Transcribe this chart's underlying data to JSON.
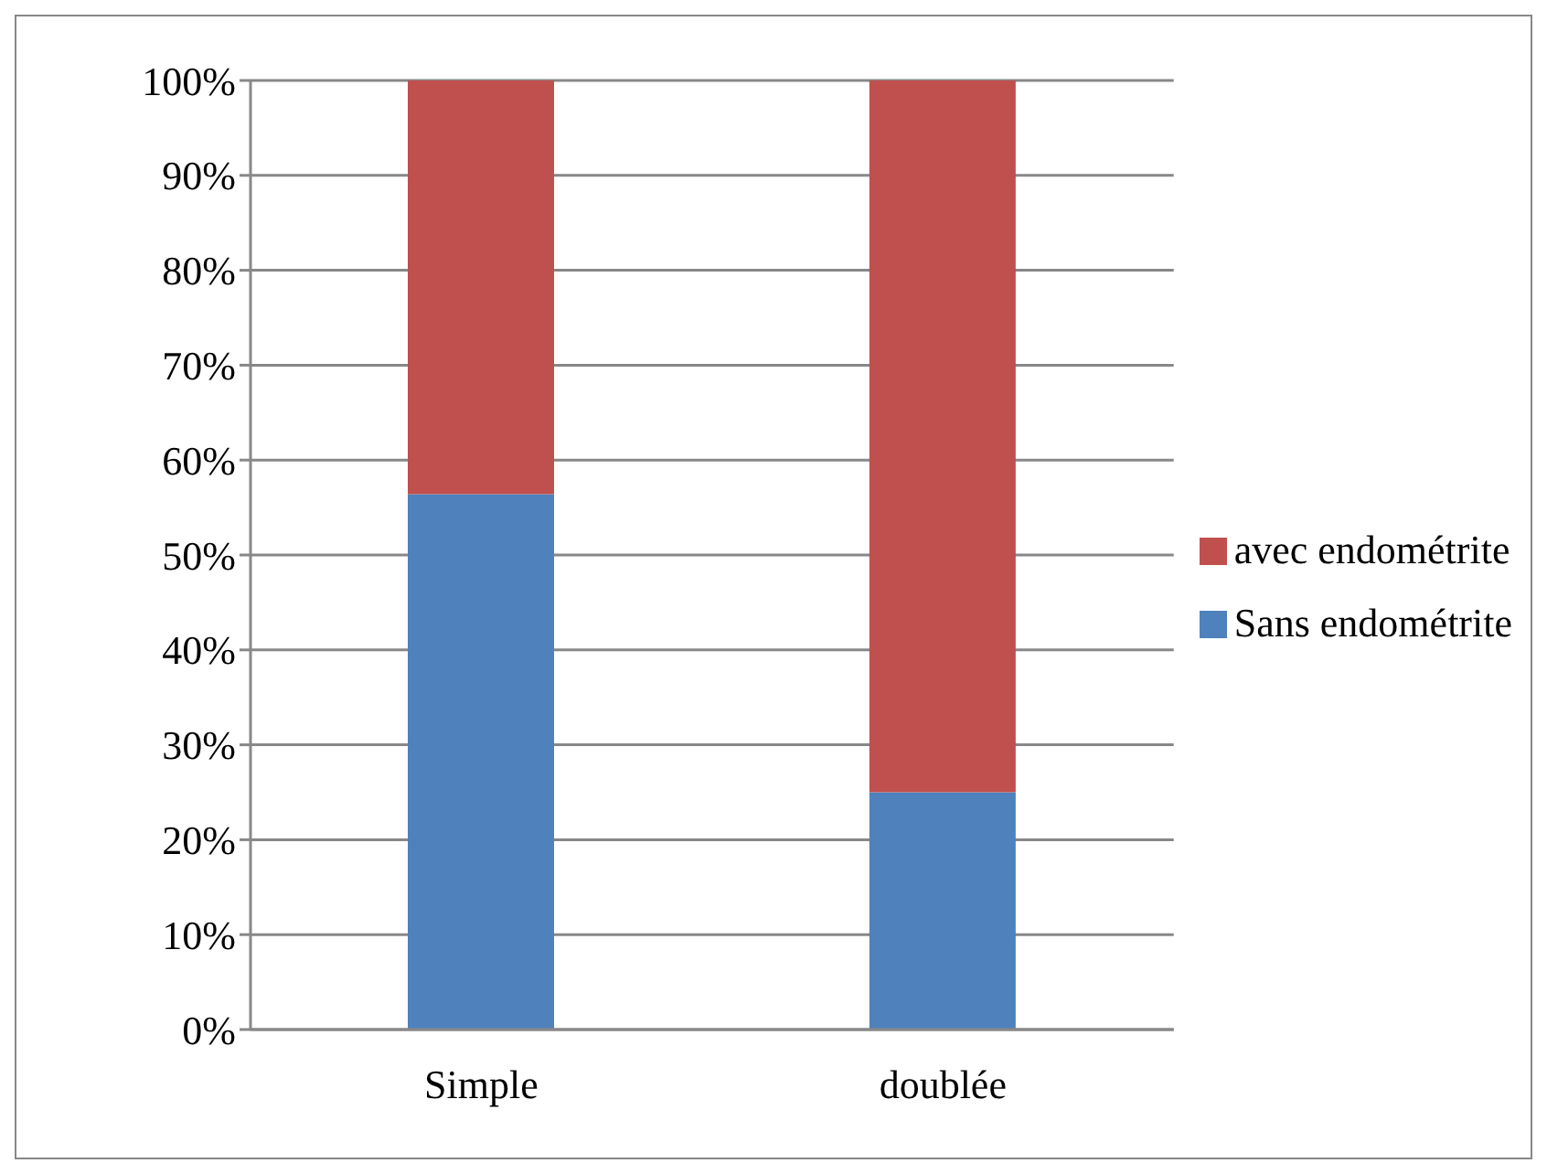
{
  "chart_data": {
    "type": "bar",
    "stacked": true,
    "categories": [
      "Simple",
      "doublée"
    ],
    "series": [
      {
        "name": "Sans endométrite",
        "color": "#4f81bd",
        "values": [
          56.4,
          25
        ]
      },
      {
        "name": "avec endométrite",
        "color": "#c0504d",
        "values": [
          43.6,
          75
        ]
      }
    ],
    "ylim": [
      0,
      100
    ],
    "yticks": [
      {
        "value": 0,
        "label": "0%"
      },
      {
        "value": 10,
        "label": "10%"
      },
      {
        "value": 20,
        "label": "20%"
      },
      {
        "value": 30,
        "label": "30%"
      },
      {
        "value": 40,
        "label": "40%"
      },
      {
        "value": 50,
        "label": "50%"
      },
      {
        "value": 60,
        "label": "60%"
      },
      {
        "value": 70,
        "label": "70%"
      },
      {
        "value": 80,
        "label": "80%"
      },
      {
        "value": 90,
        "label": "90%"
      },
      {
        "value": 100,
        "label": "100%"
      }
    ],
    "grid": "y",
    "legend": "right"
  }
}
